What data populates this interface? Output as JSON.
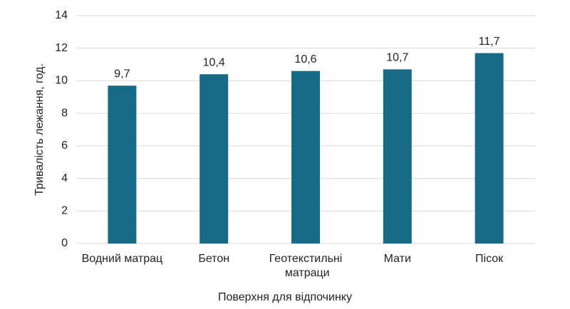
{
  "chart_data": {
    "type": "bar",
    "categories": [
      "Водний матрац",
      "Бетон",
      "Геотекстильні матраци",
      "Мати",
      "Пісок"
    ],
    "values": [
      9.7,
      10.4,
      10.6,
      10.7,
      11.7
    ],
    "value_labels": [
      "9,7",
      "10,4",
      "10,6",
      "10,7",
      "11,7"
    ],
    "color": "#176b87",
    "ylim": [
      0,
      14
    ],
    "yticks": [
      0,
      2,
      4,
      6,
      8,
      10,
      12,
      14
    ],
    "grid": true,
    "ylabel": "Тривалість лежання, год.",
    "xlabel": "Поверхня для відпочинку"
  }
}
